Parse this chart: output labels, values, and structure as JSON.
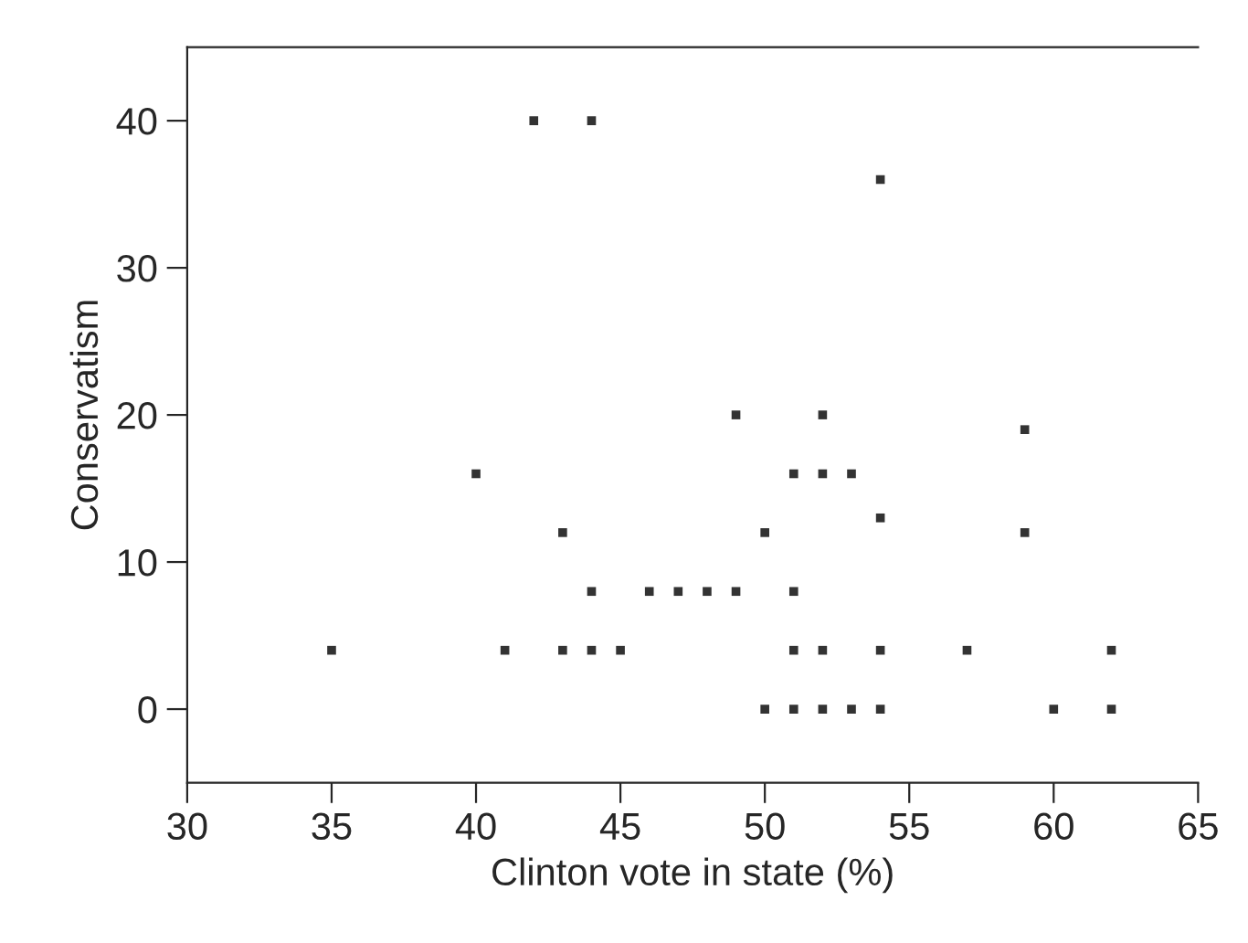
{
  "chart_data": {
    "type": "scatter",
    "xlabel": "Clinton vote in state (%)",
    "ylabel": "Conservatism",
    "x": [
      35,
      40,
      42,
      44,
      54,
      43,
      44,
      46,
      47,
      48,
      49,
      41,
      43,
      44,
      45,
      49,
      50,
      51,
      52,
      52,
      53,
      54,
      51,
      51,
      52,
      54,
      57,
      62,
      50,
      51,
      52,
      53,
      54,
      60,
      62,
      59,
      59
    ],
    "series": [
      {
        "color": "#333333",
        "values": [
          4,
          16,
          40,
          40,
          36,
          12,
          8,
          8,
          8,
          8,
          8,
          4,
          4,
          4,
          4,
          20,
          12,
          16,
          20,
          16,
          16,
          13,
          8,
          4,
          4,
          4,
          4,
          4,
          0,
          0,
          0,
          0,
          0,
          0,
          0,
          19,
          12
        ]
      }
    ],
    "xlim": [
      30,
      65
    ],
    "xticks": [
      30,
      35,
      40,
      45,
      50,
      55,
      60,
      65
    ],
    "ylim": [
      -5,
      45
    ],
    "yticks": [
      0,
      10,
      20,
      30,
      40
    ],
    "grid": false,
    "legend": false
  }
}
